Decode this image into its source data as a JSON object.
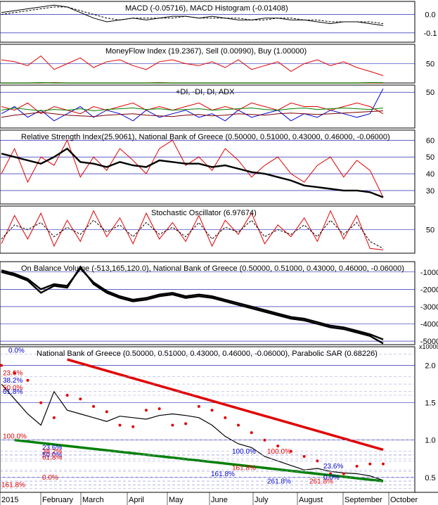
{
  "chart_data": {
    "type": "line",
    "title": "National Bank of Greece (0.50000, 0.51000, 0.43000, 0.46000, -0.06000), Parabolic SAR (0.68226)",
    "x_labels": [
      "2015",
      "February",
      "March",
      "April",
      "May",
      "June",
      "July",
      "August",
      "September",
      "October"
    ],
    "colors": {
      "price": "#000000",
      "sar": "#e00000",
      "trend_red": "#e00000",
      "trend_green": "#008000",
      "bands": "#0000cc",
      "fib": "#0000cc"
    },
    "panels": [
      {
        "id": "macd",
        "label": "MACD (-0.05716), MACD Histogram (-0.01408)",
        "ylim": [
          -0.15,
          0.07
        ],
        "ticks": [
          "0.0",
          "-0.1"
        ],
        "tick_values": [
          0.0,
          -0.1
        ],
        "series": [
          {
            "name": "MACD",
            "values": [
              0.01,
              0.02,
              0.03,
              0.04,
              0.05,
              0.04,
              0.01,
              -0.02,
              -0.04,
              -0.03,
              -0.02,
              -0.03,
              -0.02,
              -0.01,
              -0.01,
              -0.02,
              -0.01,
              -0.02,
              -0.03,
              -0.03,
              -0.02,
              -0.02,
              -0.03,
              -0.03,
              -0.04,
              -0.05,
              -0.04,
              -0.04,
              -0.05,
              -0.06
            ]
          },
          {
            "name": "Signal",
            "values": [
              0.0,
              0.01,
              0.02,
              0.03,
              0.04,
              0.04,
              0.02,
              0.0,
              -0.02,
              -0.03,
              -0.02,
              -0.02,
              -0.02,
              -0.02,
              -0.01,
              -0.02,
              -0.02,
              -0.02,
              -0.02,
              -0.03,
              -0.03,
              -0.02,
              -0.02,
              -0.03,
              -0.03,
              -0.04,
              -0.04,
              -0.04,
              -0.04,
              -0.05
            ]
          }
        ]
      },
      {
        "id": "mfi",
        "label": "MoneyFlow Index (19.2367), Sell (0.00990), Buy (1.00000)",
        "ylim": [
          0,
          100
        ],
        "ticks": [
          "50"
        ],
        "tick_values": [
          50
        ],
        "series": [
          {
            "name": "MoneyFlow Index",
            "values": [
              60,
              55,
              45,
              70,
              35,
              50,
              65,
              40,
              55,
              60,
              45,
              35,
              55,
              60,
              50,
              45,
              55,
              40,
              60,
              35,
              45,
              55,
              30,
              50,
              60,
              45,
              55,
              40,
              30,
              19
            ]
          },
          {
            "name": "Sell",
            "values": [
              0,
              0,
              0,
              0,
              1,
              0,
              0,
              0,
              0,
              0,
              0,
              0,
              1,
              0,
              0,
              0,
              0,
              0,
              0,
              0,
              0,
              0,
              0,
              0,
              0,
              0,
              0,
              0,
              0,
              0
            ]
          },
          {
            "name": "Buy",
            "values": [
              0,
              0,
              0,
              1,
              0,
              0,
              0,
              0,
              0,
              0,
              0,
              0,
              0,
              0,
              0,
              0,
              0,
              0,
              0,
              0,
              0,
              0,
              0,
              0,
              0,
              0,
              0,
              0,
              1,
              1
            ]
          }
        ]
      },
      {
        "id": "dmi",
        "label": "+DI, -DI, DI, ADX",
        "ylim": [
          0,
          60
        ],
        "ticks": [
          "50"
        ],
        "tick_values": [
          50
        ],
        "series": [
          {
            "name": "+DI",
            "values": [
              20,
              30,
              15,
              25,
              10,
              20,
              30,
              15,
              25,
              20,
              10,
              25,
              15,
              20,
              25,
              15,
              20,
              10,
              25,
              15,
              20,
              25,
              10,
              20,
              15,
              25,
              20,
              15,
              20,
              55
            ]
          },
          {
            "name": "-DI",
            "values": [
              30,
              25,
              35,
              20,
              30,
              25,
              20,
              30,
              25,
              30,
              35,
              25,
              30,
              25,
              30,
              35,
              25,
              30,
              25,
              35,
              30,
              25,
              35,
              30,
              30,
              25,
              30,
              35,
              30,
              20
            ]
          },
          {
            "name": "DI",
            "values": [
              25,
              28,
              26,
              24,
              26,
              25,
              27,
              24,
              26,
              27,
              28,
              26,
              27,
              25,
              26,
              27,
              25,
              26,
              27,
              28,
              26,
              25,
              27,
              28,
              26,
              27,
              28,
              27,
              26,
              28
            ]
          },
          {
            "name": "ADX",
            "values": [
              15,
              18,
              20,
              22,
              20,
              18,
              17,
              16,
              18,
              19,
              20,
              18,
              17,
              16,
              18,
              19,
              17,
              18,
              20,
              19,
              18,
              20,
              21,
              20,
              19,
              20,
              21,
              22,
              23,
              24
            ]
          }
        ]
      },
      {
        "id": "rsi",
        "label": "Relative Strength Index(25.9061), National Bank of Greece (0.50000, 0.51000, 0.43000, 0.46000, -0.06000)",
        "ylim": [
          22,
          66
        ],
        "ticks": [
          "60",
          "50",
          "40",
          "30"
        ],
        "tick_values": [
          60,
          50,
          40,
          30
        ],
        "series": [
          {
            "name": "RSI",
            "values": [
              40,
              55,
              35,
              50,
              45,
              60,
              38,
              50,
              42,
              55,
              48,
              40,
              55,
              60,
              45,
              50,
              42,
              55,
              48,
              38,
              45,
              50,
              40,
              35,
              45,
              50,
              38,
              48,
              42,
              26
            ]
          },
          {
            "name": "Price",
            "values": [
              52,
              50,
              48,
              46,
              50,
              55,
              47,
              46,
              44,
              47,
              45,
              44,
              48,
              47,
              46,
              46,
              44,
              45,
              43,
              41,
              40,
              38,
              36,
              33,
              32,
              31,
              30,
              30,
              29,
              26
            ]
          }
        ]
      },
      {
        "id": "stoch",
        "label": "Stochastic Oscillator (6.97674)",
        "ylim": [
          0,
          100
        ],
        "ticks": [
          "50"
        ],
        "tick_values": [
          50
        ],
        "series": [
          {
            "name": "%K",
            "values": [
              20,
              80,
              30,
              85,
              15,
              70,
              25,
              90,
              35,
              75,
              20,
              85,
              30,
              65,
              25,
              80,
              15,
              70,
              40,
              85,
              20,
              60,
              35,
              75,
              25,
              90,
              30,
              80,
              10,
              7
            ]
          },
          {
            "name": "%D",
            "values": [
              30,
              60,
              50,
              65,
              35,
              55,
              40,
              70,
              45,
              60,
              35,
              65,
              40,
              55,
              35,
              65,
              30,
              55,
              45,
              70,
              35,
              50,
              40,
              60,
              35,
              70,
              40,
              65,
              25,
              10
            ]
          }
        ]
      },
      {
        "id": "obv",
        "label": "On Balance Volume (-513,165,120.0), National Bank of Greece (0.50000, 0.51000, 0.43000, 0.46000, -0.06000)",
        "ylim": [
          -5200,
          -400
        ],
        "ticks": [
          "-1000",
          "-2000",
          "-3000",
          "-4000",
          "-5000"
        ],
        "tick_values": [
          -1000,
          -2000,
          -3000,
          -4000,
          -5000
        ],
        "unit": "x100000",
        "series": [
          {
            "name": "OBV",
            "values": [
              -1000,
              -1200,
              -1500,
              -2200,
              -1800,
              -1900,
              -700,
              -1700,
              -2200,
              -2500,
              -2700,
              -2600,
              -2400,
              -2300,
              -2500,
              -2400,
              -2500,
              -2700,
              -2900,
              -3100,
              -3300,
              -3500,
              -3700,
              -3800,
              -4000,
              -4200,
              -4300,
              -4500,
              -4700,
              -5130
            ]
          },
          {
            "name": "Price",
            "values": [
              -900,
              -1100,
              -1400,
              -2000,
              -1700,
              -1800,
              -800,
              -1600,
              -2100,
              -2400,
              -2600,
              -2500,
              -2300,
              -2200,
              -2400,
              -2300,
              -2400,
              -2600,
              -2800,
              -3000,
              -3200,
              -3400,
              -3600,
              -3700,
              -3900,
              -4100,
              -4200,
              -4400,
              -4600,
              -4900
            ]
          }
        ]
      },
      {
        "id": "price",
        "label": "National Bank of Greece (0.50000, 0.51000, 0.43000, 0.46000, -0.06000), Parabolic SAR (0.68226)",
        "ylim": [
          0.3,
          2.25
        ],
        "ticks": [
          "2.0",
          "1.5",
          "1.0",
          "0.5"
        ],
        "tick_values": [
          2.0,
          1.5,
          1.0,
          0.5
        ],
        "series": [
          {
            "name": "Close",
            "values": [
              1.75,
              1.55,
              1.35,
              1.2,
              1.65,
              1.4,
              1.35,
              1.3,
              1.25,
              1.32,
              1.3,
              1.28,
              1.33,
              1.35,
              1.33,
              1.3,
              1.2,
              1.05,
              0.95,
              0.9,
              0.78,
              0.72,
              0.66,
              0.6,
              0.62,
              0.58,
              0.56,
              0.55,
              0.52,
              0.46
            ]
          },
          {
            "name": "Parabolic SAR",
            "values": [
              2.0,
              1.9,
              1.8,
              1.5,
              1.3,
              1.6,
              1.55,
              1.45,
              1.38,
              1.2,
              1.18,
              1.4,
              1.42,
              1.2,
              1.22,
              1.45,
              1.4,
              1.3,
              1.2,
              1.1,
              1.0,
              0.92,
              0.85,
              0.78,
              0.72,
              0.55,
              0.55,
              0.65,
              0.68,
              0.68
            ]
          }
        ],
        "trendlines": [
          {
            "name": "resistance",
            "from": [
              5,
              2.08
            ],
            "to": [
              29,
              0.87
            ]
          },
          {
            "name": "support",
            "from": [
              1,
              1.0
            ],
            "to": [
              29,
              0.45
            ]
          }
        ],
        "fib_labels": [
          "0.0%",
          "23.6%",
          "38.2%",
          "50.0%",
          "61.8%",
          "100.0%",
          "23.6%",
          "38.2%",
          "50.0%",
          "61.8%",
          "100.0%",
          "161.8%",
          "261.8%",
          "0.0%",
          "23.6%",
          "100.0%",
          "161.8%",
          "261.8%",
          "0.0%",
          "161.8%"
        ]
      }
    ]
  }
}
